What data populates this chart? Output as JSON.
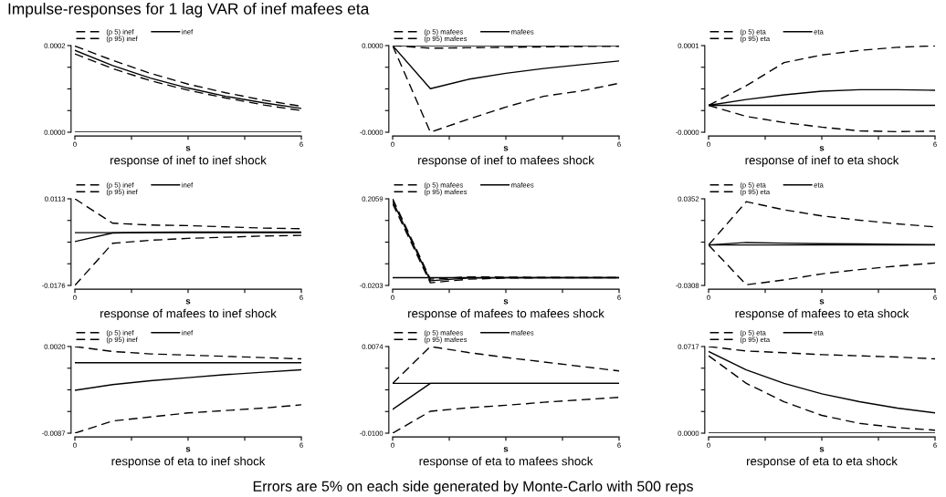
{
  "chart_data": [
    {
      "type": "line",
      "title": "response of inef to inef shock",
      "xlabel": "s",
      "annotations": [
        "Impulse-responses for 1 lag VAR of inef mafees eta"
      ],
      "x": [
        0,
        1,
        2,
        3,
        4,
        5,
        6
      ],
      "xlim": [
        0,
        6
      ],
      "xticks": [
        0,
        {
          "value": 1.5,
          "label": null
        },
        {
          "value": 3,
          "label": null
        },
        {
          "value": 4.5,
          "label": null
        },
        6
      ],
      "ylim": [
        0,
        0.0002
      ],
      "yticks": [
        {
          "value": 0,
          "label": "0.0000"
        },
        {
          "value": 5e-05,
          "label": null
        },
        {
          "value": 0.0001,
          "label": null
        },
        {
          "value": 0.00015,
          "label": null
        },
        {
          "value": 0.0002,
          "label": "0.0002"
        }
      ],
      "legend": "top",
      "grid": false,
      "ref_lines": [
        {
          "axis": "y",
          "value": 0,
          "color": "#000000",
          "line_style": "solid"
        }
      ],
      "series": [
        {
          "name": "(p 5) inef",
          "color": "#000000",
          "line_style": "dashed",
          "values": [
            0.000181,
            0.000147,
            0.000119,
            9.7e-05,
            7.9e-05,
            6.3e-05,
            5e-05
          ]
        },
        {
          "name": "inef",
          "color": "#000000",
          "line_style": "solid",
          "values": [
            0.000189,
            0.000154,
            0.000125,
            0.000102,
            8.3e-05,
            6.8e-05,
            5.5e-05
          ]
        },
        {
          "name": "(p 95) inef",
          "color": "#000000",
          "line_style": "dashed",
          "values": [
            0.000199,
            0.000166,
            0.000136,
            0.000111,
            9.1e-05,
            7.4e-05,
            6e-05
          ]
        }
      ]
    },
    {
      "type": "line",
      "title": "response of inef to mafees shock",
      "xlabel": "s",
      "x": [
        0,
        1,
        2,
        3,
        4,
        5,
        6
      ],
      "xlim": [
        0,
        6
      ],
      "xticks": [
        0,
        {
          "value": 1.5,
          "label": null
        },
        {
          "value": 3,
          "label": null
        },
        {
          "value": 4.5,
          "label": null
        },
        6
      ],
      "ylim": [
        -4e-05,
        0
      ],
      "yticks": [
        {
          "value": -4e-05,
          "label": "-0.0000"
        },
        {
          "value": -3e-05,
          "label": null
        },
        {
          "value": -2e-05,
          "label": null
        },
        {
          "value": -1e-05,
          "label": null
        },
        {
          "value": 0,
          "label": "0.0000"
        }
      ],
      "legend": "top",
      "grid": false,
      "ref_lines": [
        {
          "axis": "y",
          "value": 0,
          "color": "#000000",
          "line_style": "solid"
        }
      ],
      "series": [
        {
          "name": "(p 5) mafees",
          "color": "#000000",
          "line_style": "dashed",
          "values": [
            0,
            -4e-05,
            -3.4e-05,
            -2.84e-05,
            -2.34e-05,
            -2.09e-05,
            -1.74e-05
          ]
        },
        {
          "name": "mafees",
          "color": "#000000",
          "line_style": "solid",
          "values": [
            0,
            -1.99e-05,
            -1.56e-05,
            -1.28e-05,
            -1.06e-05,
            -8.8e-06,
            -7.1e-06
          ]
        },
        {
          "name": "(p 95) mafees",
          "color": "#000000",
          "line_style": "dashed",
          "values": [
            0,
            -1.2e-06,
            -1e-06,
            -8e-07,
            -6e-07,
            -4e-07,
            -3e-07
          ]
        }
      ]
    },
    {
      "type": "line",
      "title": "response of inef to eta shock",
      "xlabel": "s",
      "x": [
        0,
        1,
        2,
        3,
        4,
        5,
        6
      ],
      "xlim": [
        0,
        6
      ],
      "xticks": [
        0,
        {
          "value": 1.5,
          "label": null
        },
        {
          "value": 3,
          "label": null
        },
        {
          "value": 4.5,
          "label": null
        },
        6
      ],
      "ylim": [
        -4.5e-05,
        0.0001
      ],
      "yticks": [
        {
          "value": -4.5e-05,
          "label": "-0.0000"
        },
        {
          "value": -8.75e-06,
          "label": null
        },
        {
          "value": 2.75e-05,
          "label": null
        },
        {
          "value": 6.375e-05,
          "label": null
        },
        {
          "value": 0.0001,
          "label": "0.0001"
        }
      ],
      "legend": "top",
      "grid": false,
      "ref_lines": [
        {
          "axis": "y",
          "value": 0,
          "color": "#000000",
          "line_style": "solid"
        }
      ],
      "series": [
        {
          "name": "(p 5) eta",
          "color": "#000000",
          "line_style": "dashed",
          "values": [
            0,
            -1.85e-05,
            -2.88e-05,
            -3.65e-05,
            -4.27e-05,
            -4.4e-05,
            -4.32e-05
          ]
        },
        {
          "name": "eta",
          "color": "#000000",
          "line_style": "solid",
          "values": [
            0,
            9.8e-06,
            1.75e-05,
            2.36e-05,
            2.62e-05,
            2.62e-05,
            2.52e-05
          ]
        },
        {
          "name": "(p 95) eta",
          "color": "#000000",
          "line_style": "dashed",
          "values": [
            0,
            3.29e-05,
            7.15e-05,
            8.43e-05,
            9.2e-05,
            9.72e-05,
            9.97e-05
          ]
        }
      ]
    },
    {
      "type": "line",
      "title": "response of mafees to inef shock",
      "xlabel": "s",
      "x": [
        0,
        1,
        2,
        3,
        4,
        5,
        6
      ],
      "xlim": [
        0,
        6
      ],
      "xticks": [
        0,
        {
          "value": 1.5,
          "label": null
        },
        {
          "value": 3,
          "label": null
        },
        {
          "value": 4.5,
          "label": null
        },
        6
      ],
      "ylim": [
        -0.0176,
        0.0113
      ],
      "yticks": [
        {
          "value": -0.0176,
          "label": "-0.0176"
        },
        {
          "value": -0.010375,
          "label": null
        },
        {
          "value": -0.00315,
          "label": null
        },
        {
          "value": 0.004075,
          "label": null
        },
        {
          "value": 0.0113,
          "label": "0.0113"
        }
      ],
      "legend": "top",
      "grid": false,
      "ref_lines": [
        {
          "axis": "y",
          "value": 0,
          "color": "#000000",
          "line_style": "solid"
        }
      ],
      "series": [
        {
          "name": "(p 5) inef",
          "color": "#000000",
          "line_style": "dashed",
          "values": [
            -0.0176,
            -0.00355,
            -0.00254,
            -0.0019,
            -0.0015,
            -0.0011,
            -0.0009
          ]
        },
        {
          "name": "inef",
          "color": "#000000",
          "line_style": "solid",
          "values": [
            -0.00295,
            -0.0001,
            0.0001,
            0.0002,
            0.0002,
            0.0002,
            0.0002
          ]
        },
        {
          "name": "(p 95) inef",
          "color": "#000000",
          "line_style": "dashed",
          "values": [
            0.0113,
            0.00316,
            0.00255,
            0.00235,
            0.00194,
            0.00153,
            0.00133
          ]
        }
      ]
    },
    {
      "type": "line",
      "title": "response of mafees to mafees shock",
      "xlabel": "s",
      "x": [
        0,
        1,
        2,
        3,
        4,
        5,
        6
      ],
      "xlim": [
        0,
        6
      ],
      "xticks": [
        0,
        {
          "value": 1.5,
          "label": null
        },
        {
          "value": 3,
          "label": null
        },
        {
          "value": 4.5,
          "label": null
        },
        6
      ],
      "ylim": [
        -0.0203,
        0.2059
      ],
      "yticks": [
        {
          "value": -0.0203,
          "label": "-0.0203"
        },
        {
          "value": 0.03625,
          "label": null
        },
        {
          "value": 0.0928,
          "label": null
        },
        {
          "value": 0.14935,
          "label": null
        },
        {
          "value": 0.2059,
          "label": "0.2059"
        }
      ],
      "legend": "top",
      "grid": false,
      "ref_lines": [
        {
          "axis": "y",
          "value": 0,
          "color": "#000000",
          "line_style": "solid"
        }
      ],
      "series": [
        {
          "name": "(p 5) mafees",
          "color": "#000000",
          "line_style": "dashed",
          "values": [
            0.193,
            -0.0135,
            -0.004,
            -0.001,
            -0.0003,
            -0.0001,
            0
          ]
        },
        {
          "name": "mafees",
          "color": "#000000",
          "line_style": "solid",
          "values": [
            0.2,
            -0.008,
            -0.001,
            0,
            0,
            0,
            0
          ]
        },
        {
          "name": "(p 95) mafees",
          "color": "#000000",
          "line_style": "dashed",
          "values": [
            0.2059,
            -0.004,
            0.002,
            0.0015,
            0.0005,
            0.0002,
            0.0001
          ]
        }
      ]
    },
    {
      "type": "line",
      "title": "response of mafees to eta shock",
      "xlabel": "s",
      "x": [
        0,
        1,
        2,
        3,
        4,
        5,
        6
      ],
      "xlim": [
        0,
        6
      ],
      "xticks": [
        0,
        {
          "value": 1.5,
          "label": null
        },
        {
          "value": 3,
          "label": null
        },
        {
          "value": 4.5,
          "label": null
        },
        6
      ],
      "ylim": [
        -0.0308,
        0.0352
      ],
      "yticks": [
        {
          "value": -0.0308,
          "label": "-0.0308"
        },
        {
          "value": -0.0143,
          "label": null
        },
        {
          "value": 0.0022,
          "label": null
        },
        {
          "value": 0.0187,
          "label": null
        },
        {
          "value": 0.0352,
          "label": "0.0352"
        }
      ],
      "legend": "top",
      "grid": false,
      "ref_lines": [
        {
          "axis": "y",
          "value": 0,
          "color": "#000000",
          "line_style": "solid"
        }
      ],
      "series": [
        {
          "name": "(p 5) eta",
          "color": "#000000",
          "line_style": "dashed",
          "values": [
            0,
            -0.0303,
            -0.0266,
            -0.022,
            -0.0187,
            -0.016,
            -0.0137
          ]
        },
        {
          "name": "eta",
          "color": "#000000",
          "line_style": "solid",
          "values": [
            0,
            0.0019,
            0.0014,
            0.001,
            0.0008,
            0.0005,
            0.0003
          ]
        },
        {
          "name": "(p 95) eta",
          "color": "#000000",
          "line_style": "dashed",
          "values": [
            0,
            0.033,
            0.0268,
            0.0222,
            0.0189,
            0.0161,
            0.0138
          ]
        }
      ]
    },
    {
      "type": "line",
      "title": "response of eta to inef shock",
      "xlabel": "s",
      "x": [
        0,
        1,
        2,
        3,
        4,
        5,
        6
      ],
      "xlim": [
        0,
        6
      ],
      "xticks": [
        0,
        {
          "value": 1.5,
          "label": null
        },
        {
          "value": 3,
          "label": null
        },
        {
          "value": 4.5,
          "label": null
        },
        6
      ],
      "ylim": [
        -0.0087,
        0.002
      ],
      "yticks": [
        {
          "value": -0.0087,
          "label": "-0.0087"
        },
        {
          "value": -0.006025,
          "label": null
        },
        {
          "value": -0.00335,
          "label": null
        },
        {
          "value": -0.000675,
          "label": null
        },
        {
          "value": 0.002,
          "label": "0.0020"
        }
      ],
      "legend": "top",
      "grid": false,
      "ref_lines": [
        {
          "axis": "y",
          "value": 0,
          "color": "#000000",
          "line_style": "solid"
        }
      ],
      "series": [
        {
          "name": "(p 5) inef",
          "color": "#000000",
          "line_style": "dashed",
          "values": [
            -0.0087,
            -0.0072,
            -0.0067,
            -0.0062,
            -0.0059,
            -0.0056,
            -0.0052
          ]
        },
        {
          "name": "inef",
          "color": "#000000",
          "line_style": "solid",
          "values": [
            -0.0034,
            -0.0027,
            -0.00223,
            -0.00185,
            -0.00147,
            -0.00117,
            -0.00087
          ]
        },
        {
          "name": "(p 95) inef",
          "color": "#000000",
          "line_style": "dashed",
          "values": [
            0.002,
            0.00139,
            0.00109,
            0.00094,
            0.00079,
            0.00063,
            0.00048
          ]
        }
      ]
    },
    {
      "type": "line",
      "title": "response of eta to mafees shock",
      "xlabel": "s",
      "x": [
        0,
        1,
        2,
        3,
        4,
        5,
        6
      ],
      "xlim": [
        0,
        6
      ],
      "xticks": [
        0,
        {
          "value": 1.5,
          "label": null
        },
        {
          "value": 3,
          "label": null
        },
        {
          "value": 4.5,
          "label": null
        },
        6
      ],
      "ylim": [
        -0.01,
        0.0074
      ],
      "yticks": [
        {
          "value": -0.01,
          "label": "-0.0100"
        },
        {
          "value": -0.00565,
          "label": null
        },
        {
          "value": -0.0013,
          "label": null
        },
        {
          "value": 0.00305,
          "label": null
        },
        {
          "value": 0.0074,
          "label": "0.0074"
        }
      ],
      "legend": "top",
      "grid": false,
      "ref_lines": [
        {
          "axis": "y",
          "value": 0,
          "color": "#000000",
          "line_style": "solid"
        }
      ],
      "series": [
        {
          "name": "(p 5) mafees",
          "color": "#000000",
          "line_style": "dashed",
          "values": [
            -0.01,
            -0.0056,
            -0.0049,
            -0.0044,
            -0.0038,
            -0.0033,
            -0.0028
          ]
        },
        {
          "name": "mafees",
          "color": "#000000",
          "line_style": "solid",
          "values": [
            -0.0052,
            0,
            0,
            0,
            0,
            0,
            0
          ]
        },
        {
          "name": "(p 95) mafees",
          "color": "#000000",
          "line_style": "dashed",
          "values": [
            0,
            0.0074,
            0.0062,
            0.0052,
            0.0043,
            0.0034,
            0.0025
          ]
        }
      ]
    },
    {
      "type": "line",
      "title": "response of eta to eta shock",
      "xlabel": "s",
      "annotations": [
        "Errors are 5% on each side generated by Monte-Carlo with 500 reps"
      ],
      "x": [
        0,
        1,
        2,
        3,
        4,
        5,
        6
      ],
      "xlim": [
        0,
        6
      ],
      "xticks": [
        0,
        {
          "value": 1.5,
          "label": null
        },
        {
          "value": 3,
          "label": null
        },
        {
          "value": 4.5,
          "label": null
        },
        6
      ],
      "ylim": [
        0,
        0.0717
      ],
      "yticks": [
        {
          "value": 0,
          "label": "0.0000"
        },
        {
          "value": 0.017925,
          "label": null
        },
        {
          "value": 0.03585,
          "label": null
        },
        {
          "value": 0.053775,
          "label": null
        },
        {
          "value": 0.0717,
          "label": "0.0717"
        }
      ],
      "legend": "top",
      "grid": false,
      "ref_lines": [
        {
          "axis": "y",
          "value": 0,
          "color": "#000000",
          "line_style": "solid"
        }
      ],
      "series": [
        {
          "name": "(p 5) eta",
          "color": "#000000",
          "line_style": "dashed",
          "values": [
            0.0641,
            0.0412,
            0.026,
            0.0147,
            0.0081,
            0.0046,
            0.0025
          ]
        },
        {
          "name": "eta",
          "color": "#000000",
          "line_style": "solid",
          "values": [
            0.0676,
            0.0524,
            0.0412,
            0.0326,
            0.026,
            0.0208,
            0.0168
          ]
        },
        {
          "name": "(p 95) eta",
          "color": "#000000",
          "line_style": "dashed",
          "values": [
            0.0717,
            0.068,
            0.0666,
            0.065,
            0.064,
            0.063,
            0.0615
          ]
        }
      ]
    }
  ]
}
